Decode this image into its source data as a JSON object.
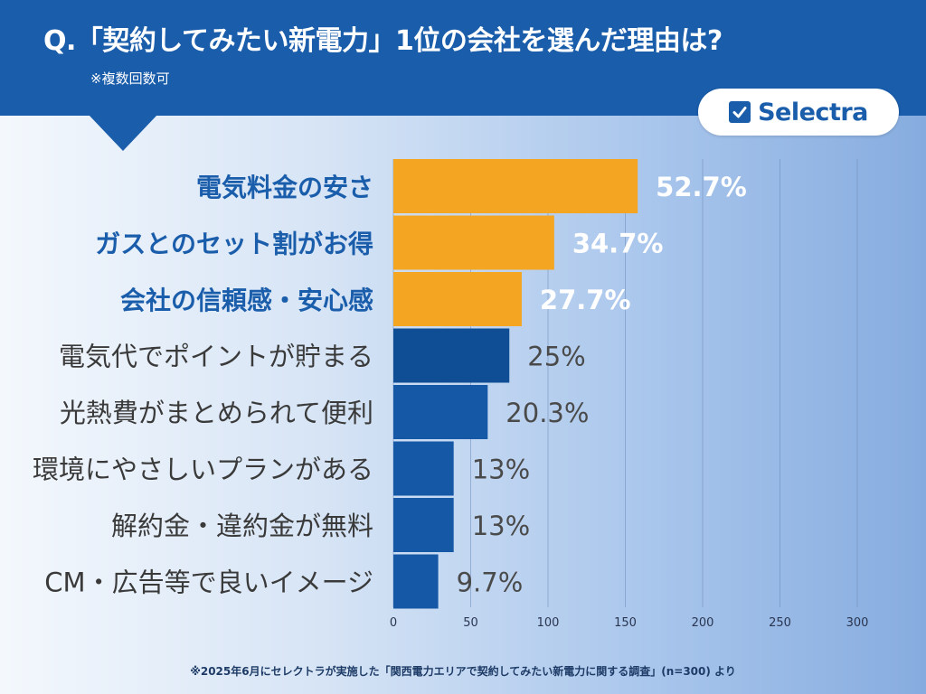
{
  "header": {
    "question": "Q.「契約してみたい新電力」1位の会社を選んだ理由は?",
    "note": "※複数回数可"
  },
  "logo": {
    "text": "Selectra",
    "icon": "checkbox-check-icon"
  },
  "colors": {
    "header_bg": "#1a5dab",
    "highlight_bar": "#f4a522",
    "normal_bar": "#1558a6",
    "dark_bar": "#0f4e94",
    "highlight_label": "#1a5dab",
    "normal_label": "#3a3a3a",
    "highlight_value": "#ffffff",
    "normal_value": "#4a4a4a"
  },
  "chart_data": {
    "type": "bar",
    "orientation": "horizontal",
    "categories": [
      "電気料金の安さ",
      "ガスとのセット割がお得",
      "会社の信頼感・安心感",
      "電気代でポイントが貯まる",
      "光熱費がまとめられて便利",
      "環境にやさしいプランがある",
      "解約金・違約金が無料",
      "CM・広告等で良いイメージ"
    ],
    "values": [
      158,
      104,
      83,
      75,
      61,
      39,
      39,
      29
    ],
    "percent_labels": [
      "52.7%",
      "34.7%",
      "27.7%",
      "25%",
      "20.3%",
      "13%",
      "13%",
      "9.7%"
    ],
    "highlighted": [
      true,
      true,
      true,
      false,
      false,
      false,
      false,
      false
    ],
    "xlim": [
      0,
      300
    ],
    "xticks": [
      0,
      50,
      100,
      150,
      200,
      250,
      300
    ],
    "grid": true,
    "n": 300
  },
  "footnote": "※2025年6月にセレクトラが実施した「関西電力エリアで契約してみたい新電力に関する調査」(n=300) より"
}
